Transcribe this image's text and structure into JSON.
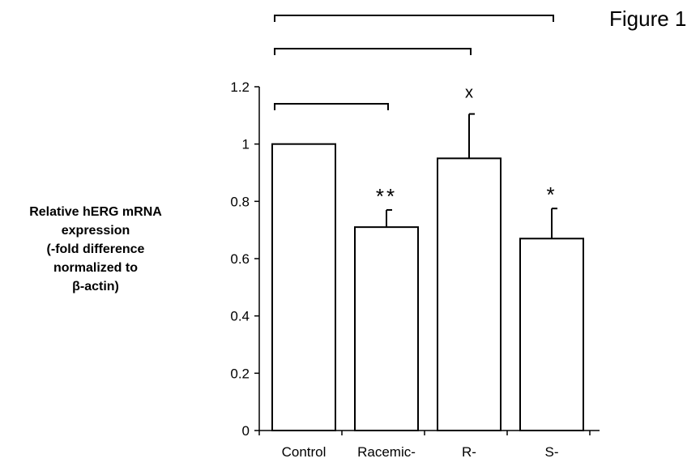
{
  "figure_label": "Figure 1",
  "chart_data": {
    "type": "bar",
    "title": "",
    "xlabel": "",
    "ylabel_lines": [
      "Relative hERG mRNA",
      "expression",
      "(-fold difference",
      "normalized to",
      "β-actin)"
    ],
    "categories": [
      "Control",
      "Racemic-",
      "R-",
      "S-"
    ],
    "values": [
      1.0,
      0.71,
      0.95,
      0.67
    ],
    "errors": [
      0,
      0.06,
      0.155,
      0.105
    ],
    "significance": [
      "",
      "**",
      "x",
      "*"
    ],
    "ylim": [
      0,
      1.2
    ],
    "yticks": [
      "0",
      "0.2",
      "0.4",
      "0.6",
      "0.8",
      "1",
      "1.2"
    ],
    "comparisons": [
      {
        "from": "Control",
        "to": "Racemic-"
      },
      {
        "from": "Control",
        "to": "R-"
      },
      {
        "from": "Control",
        "to": "S-"
      }
    ],
    "grid": false,
    "bar_color": "#ffffff",
    "edge_color": "#000000"
  }
}
